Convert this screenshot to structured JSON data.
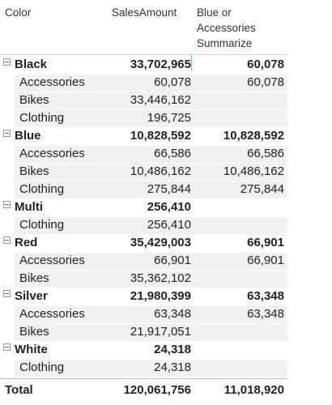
{
  "header": {
    "columns": [
      "Color",
      "SalesAmount",
      "Blue or Accessories Summarize"
    ]
  },
  "groups": [
    {
      "label": "Black",
      "values": [
        "33,702,965",
        "60,078"
      ],
      "children": [
        {
          "label": "Accessories",
          "values": [
            "60,078",
            "60,078"
          ]
        },
        {
          "label": "Bikes",
          "values": [
            "33,446,162",
            null
          ]
        },
        {
          "label": "Clothing",
          "values": [
            "196,725",
            null
          ]
        }
      ]
    },
    {
      "label": "Blue",
      "values": [
        "10,828,592",
        "10,828,592"
      ],
      "children": [
        {
          "label": "Accessories",
          "values": [
            "66,586",
            "66,586"
          ]
        },
        {
          "label": "Bikes",
          "values": [
            "10,486,162",
            "10,486,162"
          ]
        },
        {
          "label": "Clothing",
          "values": [
            "275,844",
            "275,844"
          ]
        }
      ]
    },
    {
      "label": "Multi",
      "values": [
        "256,410",
        null
      ],
      "children": [
        {
          "label": "Clothing",
          "values": [
            "256,410",
            null
          ]
        }
      ]
    },
    {
      "label": "Red",
      "values": [
        "35,429,003",
        "66,901"
      ],
      "children": [
        {
          "label": "Accessories",
          "values": [
            "66,901",
            "66,901"
          ]
        },
        {
          "label": "Bikes",
          "values": [
            "35,362,102",
            null
          ]
        }
      ]
    },
    {
      "label": "Silver",
      "values": [
        "21,980,399",
        "63,348"
      ],
      "children": [
        {
          "label": "Accessories",
          "values": [
            "63,348",
            "63,348"
          ]
        },
        {
          "label": "Bikes",
          "values": [
            "21,917,051",
            null
          ]
        }
      ]
    },
    {
      "label": "White",
      "values": [
        "24,318",
        null
      ],
      "children": [
        {
          "label": "Clothing",
          "values": [
            "24,318",
            null
          ]
        }
      ]
    }
  ],
  "total": {
    "label": "Total",
    "values": [
      "120,061,756",
      "11,018,920"
    ]
  }
}
